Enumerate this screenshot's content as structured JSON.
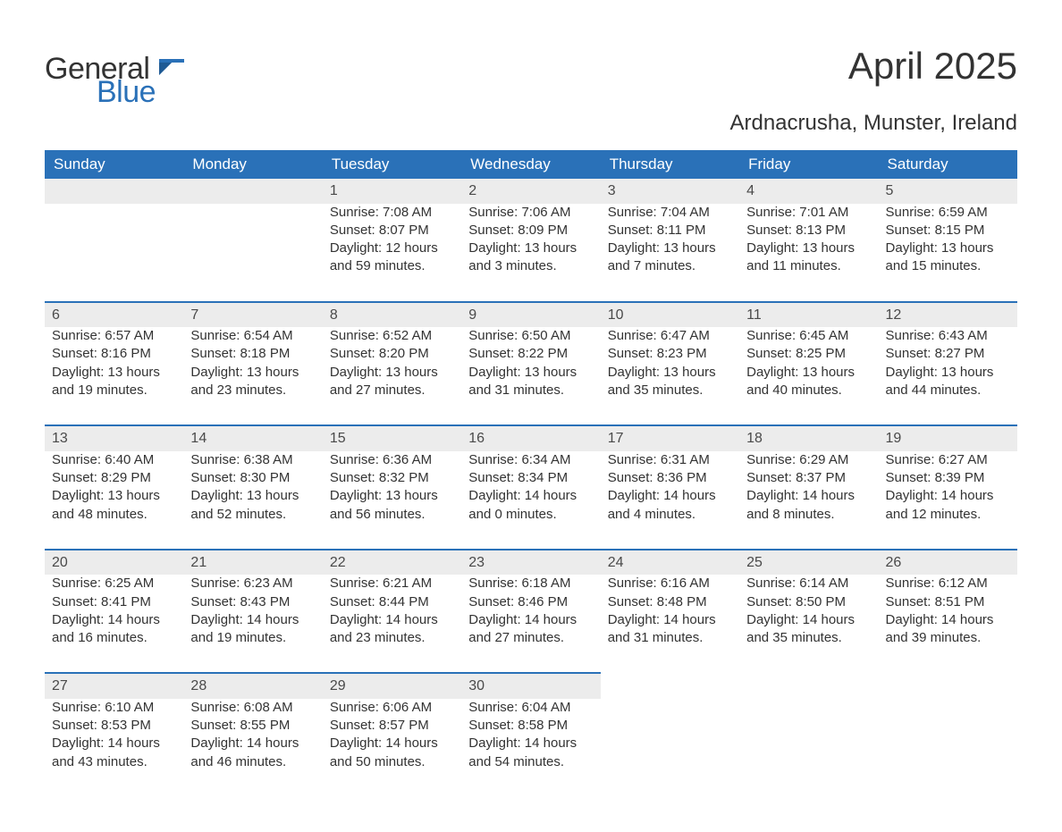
{
  "brand": {
    "word1": "General",
    "word2": "Blue",
    "flag_color": "#2a71b8"
  },
  "title": "April 2025",
  "location": "Ardnacrusha, Munster, Ireland",
  "colors": {
    "header_bg": "#2a71b8",
    "header_text": "#ffffff",
    "daynum_bg": "#ececec",
    "row_divider": "#2a71b8",
    "body_text": "#333333",
    "page_bg": "#ffffff"
  },
  "typography": {
    "title_fontsize": 42,
    "subtitle_fontsize": 24,
    "header_fontsize": 17,
    "cell_fontsize": 15,
    "daynum_fontsize": 16
  },
  "columns": [
    "Sunday",
    "Monday",
    "Tuesday",
    "Wednesday",
    "Thursday",
    "Friday",
    "Saturday"
  ],
  "labels": {
    "sunrise": "Sunrise:",
    "sunset": "Sunset:",
    "daylight": "Daylight:"
  },
  "weeks": [
    [
      null,
      null,
      {
        "n": 1,
        "sunrise": "7:08 AM",
        "sunset": "8:07 PM",
        "daylight": "12 hours and 59 minutes."
      },
      {
        "n": 2,
        "sunrise": "7:06 AM",
        "sunset": "8:09 PM",
        "daylight": "13 hours and 3 minutes."
      },
      {
        "n": 3,
        "sunrise": "7:04 AM",
        "sunset": "8:11 PM",
        "daylight": "13 hours and 7 minutes."
      },
      {
        "n": 4,
        "sunrise": "7:01 AM",
        "sunset": "8:13 PM",
        "daylight": "13 hours and 11 minutes."
      },
      {
        "n": 5,
        "sunrise": "6:59 AM",
        "sunset": "8:15 PM",
        "daylight": "13 hours and 15 minutes."
      }
    ],
    [
      {
        "n": 6,
        "sunrise": "6:57 AM",
        "sunset": "8:16 PM",
        "daylight": "13 hours and 19 minutes."
      },
      {
        "n": 7,
        "sunrise": "6:54 AM",
        "sunset": "8:18 PM",
        "daylight": "13 hours and 23 minutes."
      },
      {
        "n": 8,
        "sunrise": "6:52 AM",
        "sunset": "8:20 PM",
        "daylight": "13 hours and 27 minutes."
      },
      {
        "n": 9,
        "sunrise": "6:50 AM",
        "sunset": "8:22 PM",
        "daylight": "13 hours and 31 minutes."
      },
      {
        "n": 10,
        "sunrise": "6:47 AM",
        "sunset": "8:23 PM",
        "daylight": "13 hours and 35 minutes."
      },
      {
        "n": 11,
        "sunrise": "6:45 AM",
        "sunset": "8:25 PM",
        "daylight": "13 hours and 40 minutes."
      },
      {
        "n": 12,
        "sunrise": "6:43 AM",
        "sunset": "8:27 PM",
        "daylight": "13 hours and 44 minutes."
      }
    ],
    [
      {
        "n": 13,
        "sunrise": "6:40 AM",
        "sunset": "8:29 PM",
        "daylight": "13 hours and 48 minutes."
      },
      {
        "n": 14,
        "sunrise": "6:38 AM",
        "sunset": "8:30 PM",
        "daylight": "13 hours and 52 minutes."
      },
      {
        "n": 15,
        "sunrise": "6:36 AM",
        "sunset": "8:32 PM",
        "daylight": "13 hours and 56 minutes."
      },
      {
        "n": 16,
        "sunrise": "6:34 AM",
        "sunset": "8:34 PM",
        "daylight": "14 hours and 0 minutes."
      },
      {
        "n": 17,
        "sunrise": "6:31 AM",
        "sunset": "8:36 PM",
        "daylight": "14 hours and 4 minutes."
      },
      {
        "n": 18,
        "sunrise": "6:29 AM",
        "sunset": "8:37 PM",
        "daylight": "14 hours and 8 minutes."
      },
      {
        "n": 19,
        "sunrise": "6:27 AM",
        "sunset": "8:39 PM",
        "daylight": "14 hours and 12 minutes."
      }
    ],
    [
      {
        "n": 20,
        "sunrise": "6:25 AM",
        "sunset": "8:41 PM",
        "daylight": "14 hours and 16 minutes."
      },
      {
        "n": 21,
        "sunrise": "6:23 AM",
        "sunset": "8:43 PM",
        "daylight": "14 hours and 19 minutes."
      },
      {
        "n": 22,
        "sunrise": "6:21 AM",
        "sunset": "8:44 PM",
        "daylight": "14 hours and 23 minutes."
      },
      {
        "n": 23,
        "sunrise": "6:18 AM",
        "sunset": "8:46 PM",
        "daylight": "14 hours and 27 minutes."
      },
      {
        "n": 24,
        "sunrise": "6:16 AM",
        "sunset": "8:48 PM",
        "daylight": "14 hours and 31 minutes."
      },
      {
        "n": 25,
        "sunrise": "6:14 AM",
        "sunset": "8:50 PM",
        "daylight": "14 hours and 35 minutes."
      },
      {
        "n": 26,
        "sunrise": "6:12 AM",
        "sunset": "8:51 PM",
        "daylight": "14 hours and 39 minutes."
      }
    ],
    [
      {
        "n": 27,
        "sunrise": "6:10 AM",
        "sunset": "8:53 PM",
        "daylight": "14 hours and 43 minutes."
      },
      {
        "n": 28,
        "sunrise": "6:08 AM",
        "sunset": "8:55 PM",
        "daylight": "14 hours and 46 minutes."
      },
      {
        "n": 29,
        "sunrise": "6:06 AM",
        "sunset": "8:57 PM",
        "daylight": "14 hours and 50 minutes."
      },
      {
        "n": 30,
        "sunrise": "6:04 AM",
        "sunset": "8:58 PM",
        "daylight": "14 hours and 54 minutes."
      },
      null,
      null,
      null
    ]
  ]
}
